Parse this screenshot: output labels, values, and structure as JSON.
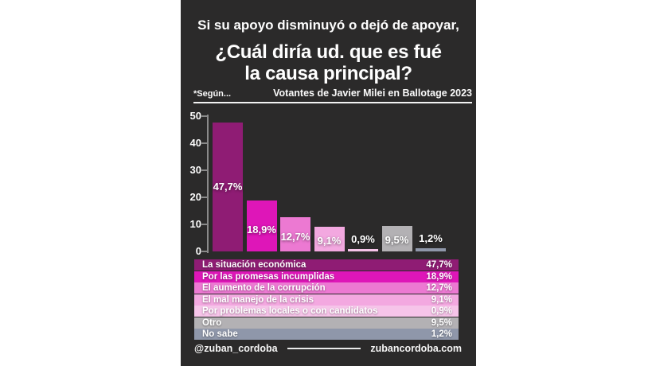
{
  "header": {
    "line1": "Si su apoyo disminuyó o dejó de apoyar,",
    "line2": "¿Cuál diría ud. que es fué",
    "line3": "la causa principal?",
    "footnote": "*Según...",
    "sample": "Votantes de Javier Milei en Ballotage 2023"
  },
  "chart_data": {
    "type": "bar",
    "title": "¿Cuál diría ud. que es fué la causa principal?",
    "subtitle": "Votantes de Javier Milei en Ballotage 2023",
    "categories": [
      "La situación económica",
      "Por las promesas incumplidas",
      "El aumento de la corrupción",
      "El mal manejo de la crisis",
      "Por problemas locales o con candidatos",
      "Otro",
      "No sabe"
    ],
    "values": [
      47.7,
      18.9,
      12.7,
      9.1,
      0.9,
      9.5,
      1.2
    ],
    "value_labels": [
      "47,7%",
      "18,9%",
      "12,7%",
      "9,1%",
      "0,9%",
      "9,5%",
      "1,2%"
    ],
    "colors": [
      "#8F1C74",
      "#DE16B8",
      "#EC79D2",
      "#F3A8E0",
      "#F6C4E9",
      "#B3B1B4",
      "#8F97AA"
    ],
    "xlabel": "",
    "ylabel": "",
    "ylim": [
      0,
      50
    ],
    "yticks": [
      0,
      10,
      20,
      30,
      40,
      50
    ],
    "ytick_labels": [
      "0",
      "10",
      "20",
      "30",
      "40",
      "50"
    ],
    "grid": false,
    "legend_position": "bottom-table",
    "background": "#2b2a2a"
  },
  "footer": {
    "handle": "@zuban_cordoba",
    "website": "zubancordoba.com"
  }
}
